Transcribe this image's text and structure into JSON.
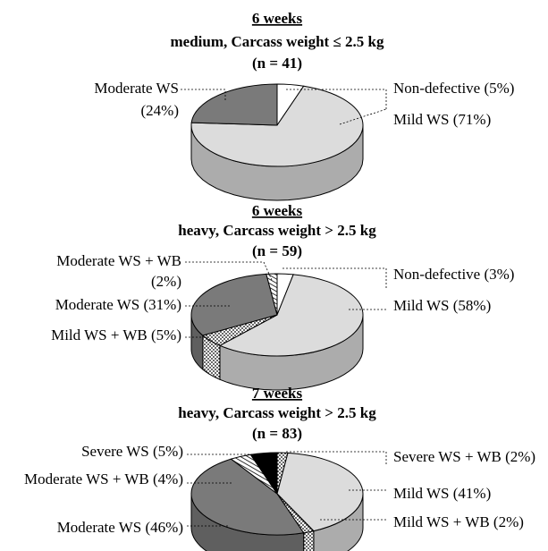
{
  "chart_data": [
    {
      "type": "pie",
      "title_lines": [
        "6 weeks",
        "medium, Carcass weight ≤ 2.5 kg",
        "(n = 41)"
      ],
      "slices": [
        {
          "label": "Non-defective (5%)",
          "value": 5,
          "color": "#ffffff",
          "pattern": "none"
        },
        {
          "label": "Mild WS (71%)",
          "value": 71,
          "color": "#dcdcdc",
          "pattern": "none"
        },
        {
          "label": "Moderate WS (24%)",
          "value": 24,
          "color": "#7a7a7a",
          "pattern": "none"
        }
      ]
    },
    {
      "type": "pie",
      "title_lines": [
        "6 weeks",
        "heavy, Carcass weight > 2.5 kg",
        "(n = 59)"
      ],
      "slices": [
        {
          "label": "Non-defective (3%)",
          "value": 3,
          "color": "#ffffff",
          "pattern": "none"
        },
        {
          "label": "Mild WS (58%)",
          "value": 58,
          "color": "#dcdcdc",
          "pattern": "none"
        },
        {
          "label": "Mild WS + WB (5%)",
          "value": 5,
          "color": "#ffffff",
          "pattern": "dots"
        },
        {
          "label": "Moderate WS (31%)",
          "value": 31,
          "color": "#7a7a7a",
          "pattern": "none"
        },
        {
          "label": "Moderate WS + WB (2%)",
          "value": 2,
          "color": "#ffffff",
          "pattern": "hatch"
        }
      ]
    },
    {
      "type": "pie",
      "title_lines": [
        "7 weeks",
        "heavy, Carcass weight > 2.5 kg",
        "(n = 83)"
      ],
      "slices": [
        {
          "label": "Severe WS + WB (2%)",
          "value": 2,
          "color": "#ffffff",
          "pattern": "dots"
        },
        {
          "label": "Mild WS (41%)",
          "value": 41,
          "color": "#dcdcdc",
          "pattern": "none"
        },
        {
          "label": "Mild WS + WB (2%)",
          "value": 2,
          "color": "#ffffff",
          "pattern": "dots"
        },
        {
          "label": "Moderate WS (46%)",
          "value": 46,
          "color": "#7a7a7a",
          "pattern": "none"
        },
        {
          "label": "Moderate WS + WB (4%)",
          "value": 4,
          "color": "#ffffff",
          "pattern": "hatch"
        },
        {
          "label": "Severe WS (5%)",
          "value": 5,
          "color": "#000000",
          "pattern": "none"
        }
      ]
    }
  ]
}
